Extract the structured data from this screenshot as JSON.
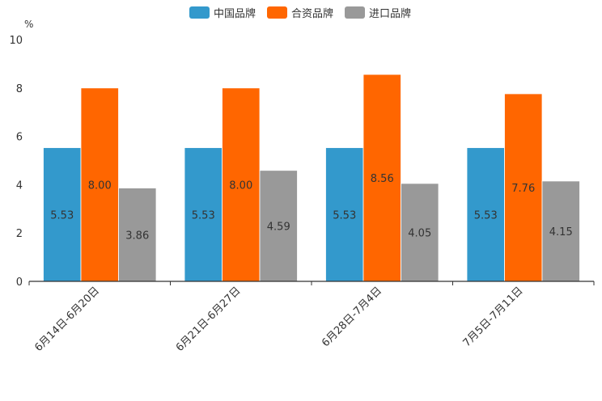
{
  "chart_data": {
    "type": "bar",
    "title": "",
    "xlabel": "",
    "ylabel": "%",
    "ylim": [
      0,
      10
    ],
    "yticks": [
      0,
      2,
      4,
      6,
      8,
      10
    ],
    "grid": false,
    "legend_position": "top-center",
    "categories": [
      "6月14日-6月20日",
      "6月21日-6月27日",
      "6月28日-7月4日",
      "7月5日-7月11日"
    ],
    "series": [
      {
        "name": "中国品牌",
        "color": "#3399cc",
        "values": [
          5.53,
          5.53,
          5.53,
          5.53
        ],
        "labels": [
          "5.53",
          "5.53",
          "5.53",
          "5.53"
        ]
      },
      {
        "name": "合资品牌",
        "color": "#ff6600",
        "values": [
          8.0,
          8.0,
          8.56,
          7.76
        ],
        "labels": [
          "8.00",
          "8.00",
          "8.56",
          "7.76"
        ]
      },
      {
        "name": "进口品牌",
        "color": "#999999",
        "values": [
          3.86,
          4.59,
          4.05,
          4.15
        ],
        "labels": [
          "3.86",
          "4.59",
          "4.05",
          "4.15"
        ]
      }
    ]
  }
}
